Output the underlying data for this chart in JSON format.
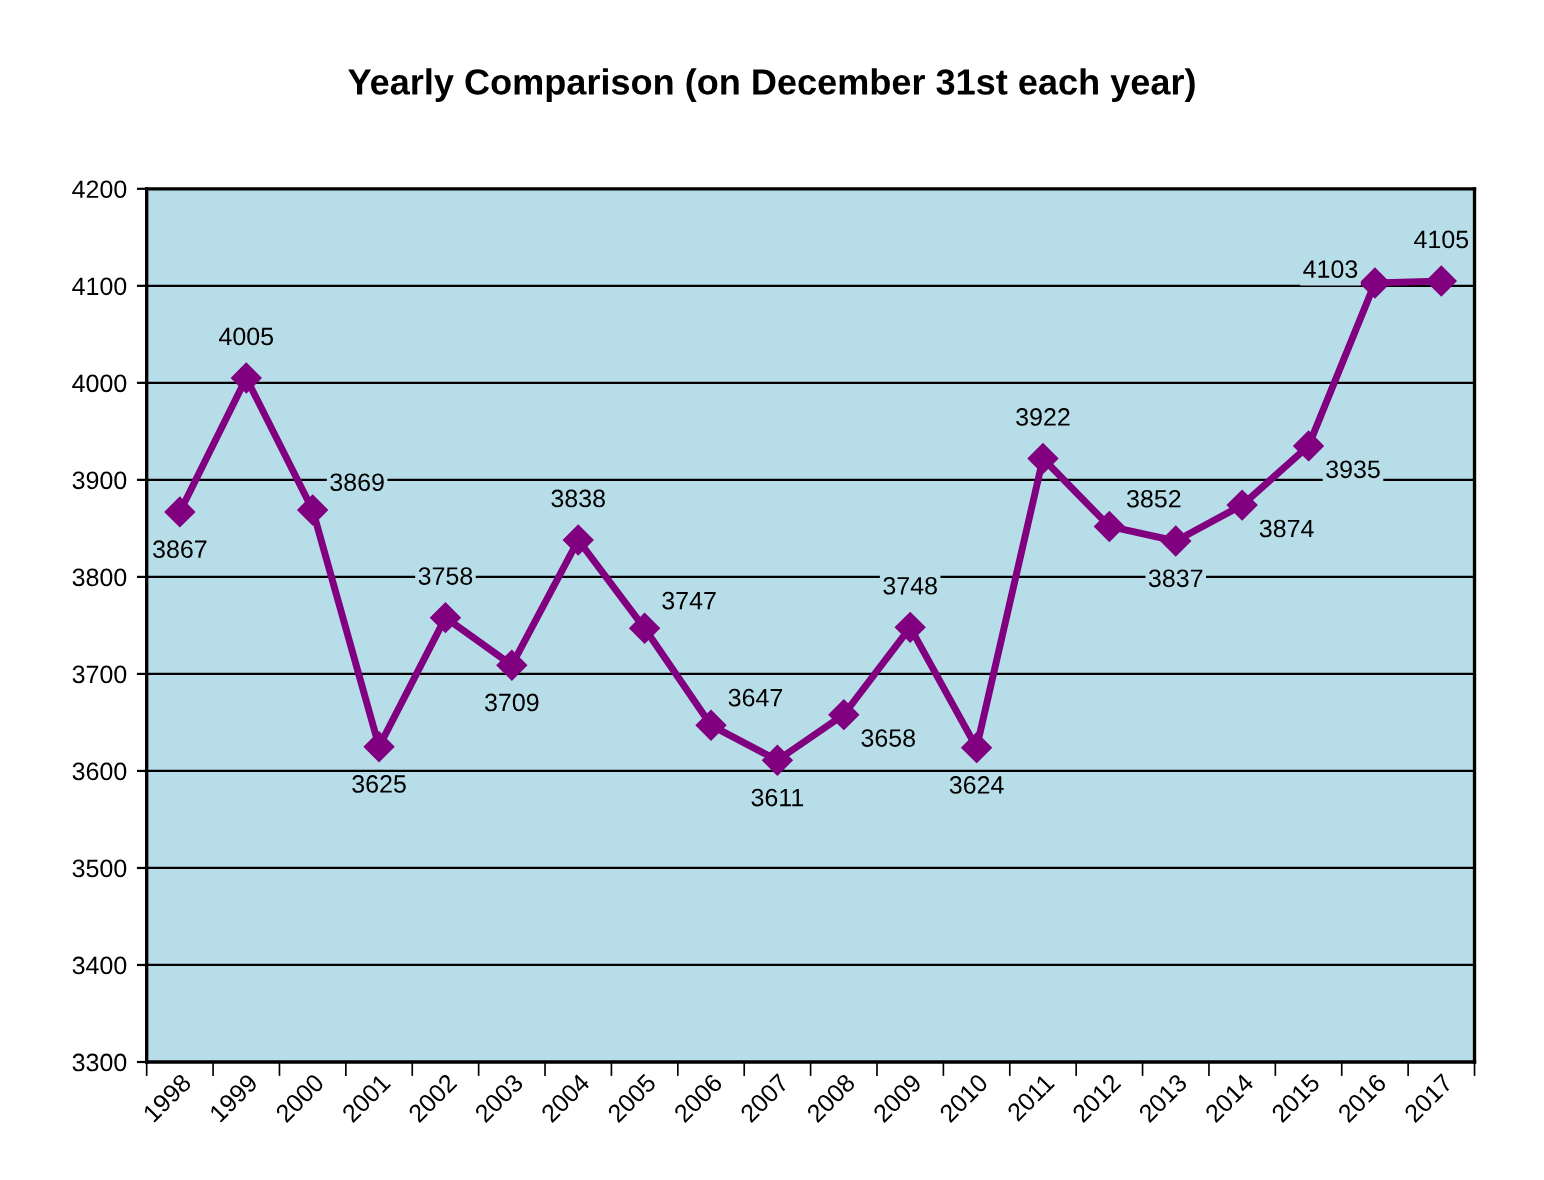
{
  "chart_data": {
    "type": "line",
    "title": "Yearly Comparison (on December 31st each year)",
    "categories": [
      "1998",
      "1999",
      "2000",
      "2001",
      "2002",
      "2003",
      "2004",
      "2005",
      "2006",
      "2007",
      "2008",
      "2009",
      "2010",
      "2011",
      "2012",
      "2013",
      "2014",
      "2015",
      "2016",
      "2017"
    ],
    "series": [
      {
        "color": "#800080",
        "values": [
          3867,
          4005,
          3869,
          3625,
          3758,
          3709,
          3838,
          3747,
          3647,
          3611,
          3658,
          3748,
          3624,
          3922,
          3852,
          3837,
          3874,
          3935,
          4103,
          4105
        ]
      }
    ],
    "ylim": [
      3300,
      4200
    ],
    "yticks": [
      3300,
      3400,
      3500,
      3600,
      3700,
      3800,
      3900,
      4000,
      4100,
      4200
    ],
    "grid": "y",
    "marker": "diamond",
    "line_style": "solid",
    "data_labels": true
  }
}
